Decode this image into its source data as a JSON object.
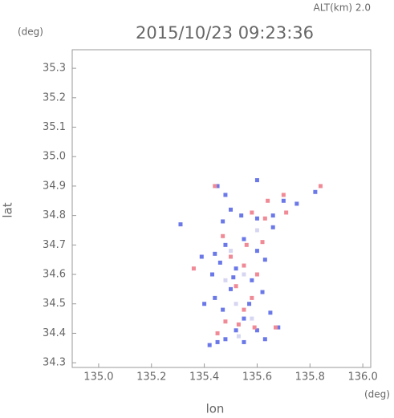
{
  "chart_data": {
    "type": "scatter",
    "title": "2015/10/23 09:23:36",
    "subtitle": "ALT(km) 2.0",
    "y_unit": "(deg)",
    "x_unit": "(deg)",
    "y_label": "lat",
    "x_label": "lon",
    "xlim": [
      134.9,
      136.03
    ],
    "ylim": [
      34.284,
      35.363
    ],
    "xticks": [
      {
        "value": 135.0,
        "label": "135.0"
      },
      {
        "value": 135.2,
        "label": "135.2"
      },
      {
        "value": 135.4,
        "label": "135.4"
      },
      {
        "value": 135.6,
        "label": "135.6"
      },
      {
        "value": 135.8,
        "label": "135.8"
      },
      {
        "value": 136.0,
        "label": "136.0"
      }
    ],
    "yticks": [
      {
        "value": 34.3,
        "label": "34.3"
      },
      {
        "value": 34.4,
        "label": "34.4"
      },
      {
        "value": 34.5,
        "label": "34.5"
      },
      {
        "value": 34.6,
        "label": "34.6"
      },
      {
        "value": 34.7,
        "label": "34.7"
      },
      {
        "value": 34.8,
        "label": "34.8"
      },
      {
        "value": 34.9,
        "label": "34.9"
      },
      {
        "value": 35.0,
        "label": "35.0"
      },
      {
        "value": 35.1,
        "label": "35.1"
      },
      {
        "value": 35.2,
        "label": "35.2"
      },
      {
        "value": 35.3,
        "label": "35.3"
      }
    ],
    "series": [
      {
        "color": "#6a78e8",
        "x": [
          135.42,
          135.45,
          135.48,
          135.4,
          135.44,
          135.47,
          135.5,
          135.52,
          135.46,
          135.44,
          135.48,
          135.55,
          135.6,
          135.63,
          135.58,
          135.62,
          135.55,
          135.65,
          135.68,
          135.6,
          135.52,
          135.47,
          135.5,
          135.48,
          135.54,
          135.6,
          135.66,
          135.7,
          135.75,
          135.82,
          135.6,
          135.45,
          135.31,
          135.51,
          135.57,
          135.43,
          135.39,
          135.66,
          135.55,
          135.63
        ],
        "y": [
          34.36,
          34.37,
          34.38,
          34.5,
          34.52,
          34.48,
          34.55,
          34.62,
          34.64,
          34.67,
          34.7,
          34.72,
          34.68,
          34.65,
          34.58,
          34.54,
          34.45,
          34.47,
          34.42,
          34.41,
          34.41,
          34.78,
          34.82,
          34.87,
          34.8,
          34.79,
          34.8,
          34.85,
          34.84,
          34.88,
          34.92,
          34.9,
          34.77,
          34.59,
          34.5,
          34.6,
          34.66,
          34.76,
          34.37,
          34.38
        ]
      },
      {
        "color": "#f08a96",
        "x": [
          135.44,
          135.64,
          135.7,
          135.71,
          135.63,
          135.58,
          135.56,
          135.5,
          135.55,
          135.52,
          135.58,
          135.55,
          135.48,
          135.45,
          135.53,
          135.67,
          135.59,
          135.36,
          135.6,
          135.62,
          135.84,
          135.47
        ],
        "y": [
          34.9,
          34.85,
          34.87,
          34.81,
          34.79,
          34.81,
          34.7,
          34.66,
          34.63,
          34.56,
          34.52,
          34.48,
          34.44,
          34.4,
          34.43,
          34.42,
          34.42,
          34.62,
          34.6,
          34.71,
          34.9,
          34.73
        ]
      },
      {
        "color": "#d6d6f2",
        "x": [
          135.5,
          135.55,
          135.52,
          135.58,
          135.48,
          135.6,
          135.53
        ],
        "y": [
          34.68,
          34.6,
          34.5,
          34.45,
          34.58,
          34.75,
          34.39
        ]
      }
    ]
  }
}
